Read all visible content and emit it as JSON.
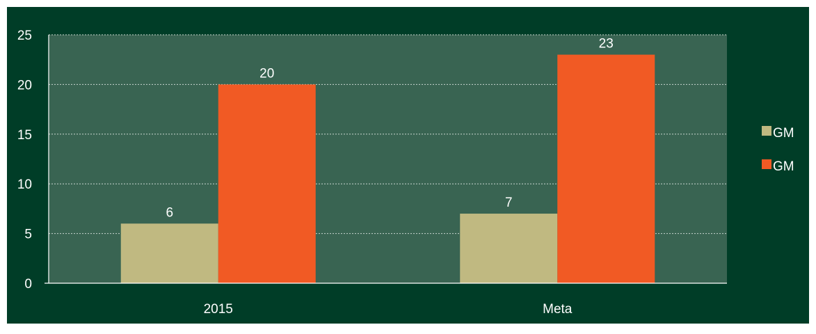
{
  "colors": {
    "frame_background": "#003d27",
    "plot_background": "#396452",
    "gridline": "#c9d6cf",
    "axis": "#ffffff",
    "text": "#ffffff"
  },
  "chart_data": {
    "type": "bar",
    "categories": [
      "2015",
      "Meta"
    ],
    "series": [
      {
        "name": "GM",
        "values": [
          6,
          7
        ],
        "color": "#c0b981"
      },
      {
        "name": "GM",
        "values": [
          20,
          23
        ],
        "color": "#f15a24"
      }
    ],
    "ylim": [
      0,
      25
    ],
    "yticks": [
      0,
      5,
      10,
      15,
      20,
      25
    ],
    "grid": true,
    "data_labels": true,
    "legend": "right"
  }
}
